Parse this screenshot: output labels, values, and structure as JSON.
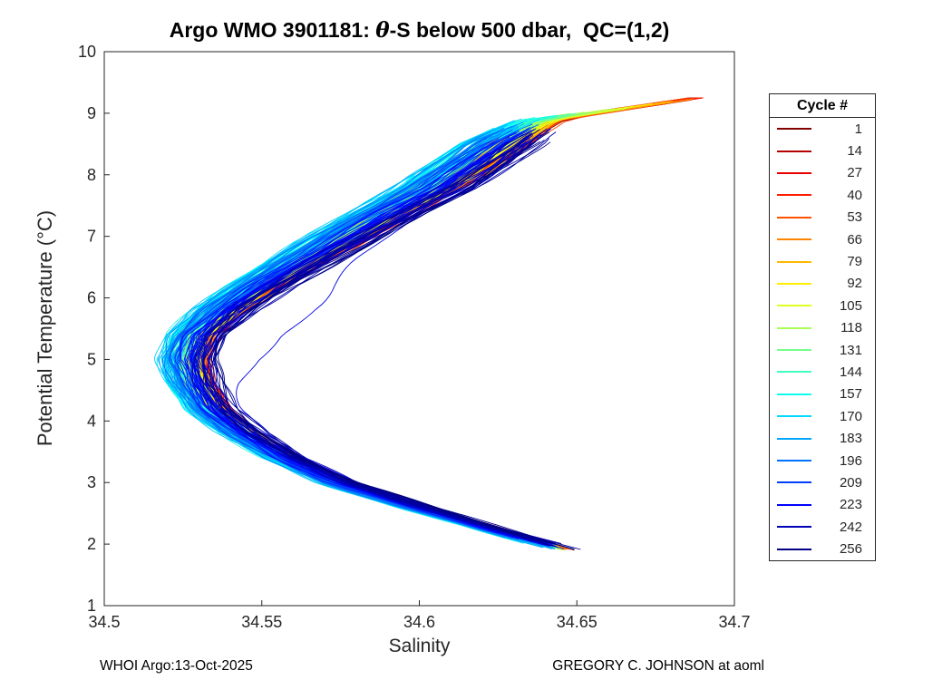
{
  "chart_data": {
    "type": "line",
    "title": "Argo WMO 3901181: θ-S below 500 dbar,  QC=(1,2)",
    "title_parts": {
      "prefix": "Argo WMO 3901181: ",
      "theta": "θ",
      "suffix": "-S below 500 dbar,  QC=(1,2)"
    },
    "xlabel": "Salinity",
    "ylabel": "Potential Temperature (°C)",
    "xlim": [
      34.5,
      34.7
    ],
    "ylim": [
      1,
      10
    ],
    "xticks": [
      34.5,
      34.55,
      34.6,
      34.65,
      34.7
    ],
    "xtick_labels": [
      "34.5",
      "34.55",
      "34.6",
      "34.65",
      "34.7"
    ],
    "yticks": [
      1,
      2,
      3,
      4,
      5,
      6,
      7,
      8,
      9,
      10
    ],
    "ytick_labels": [
      "1",
      "2",
      "3",
      "4",
      "5",
      "6",
      "7",
      "8",
      "9",
      "10"
    ],
    "grid": false,
    "axes_color": "#262626",
    "legend": {
      "title": "Cycle #",
      "position": "outside-right",
      "entries": [
        {
          "label": "1",
          "color": "#800000"
        },
        {
          "label": "14",
          "color": "#B40000"
        },
        {
          "label": "27",
          "color": "#E80000"
        },
        {
          "label": "40",
          "color": "#FF1C00"
        },
        {
          "label": "53",
          "color": "#FF5100"
        },
        {
          "label": "66",
          "color": "#FF8500"
        },
        {
          "label": "79",
          "color": "#FFB900"
        },
        {
          "label": "92",
          "color": "#FFED00"
        },
        {
          "label": "105",
          "color": "#DEFF21"
        },
        {
          "label": "118",
          "color": "#AAFF55"
        },
        {
          "label": "131",
          "color": "#76FF8A"
        },
        {
          "label": "144",
          "color": "#41FFBE"
        },
        {
          "label": "157",
          "color": "#0EFFF2"
        },
        {
          "label": "170",
          "color": "#00D9FF"
        },
        {
          "label": "183",
          "color": "#00A5FF"
        },
        {
          "label": "196",
          "color": "#0070FF"
        },
        {
          "label": "209",
          "color": "#003DFF"
        },
        {
          "label": "223",
          "color": "#0004FF"
        },
        {
          "label": "242",
          "color": "#0000B8"
        },
        {
          "label": "256",
          "color": "#000080"
        }
      ]
    },
    "colormap": {
      "name": "jet-reversed",
      "stops": [
        {
          "t": 0.0,
          "color": "#800000"
        },
        {
          "t": 0.125,
          "color": "#FF0000"
        },
        {
          "t": 0.375,
          "color": "#FFFF00"
        },
        {
          "t": 0.625,
          "color": "#00FFFF"
        },
        {
          "t": 0.875,
          "color": "#0000FF"
        },
        {
          "t": 1.0,
          "color": "#000080"
        }
      ]
    },
    "cycles": {
      "first": 1,
      "last": 256
    },
    "representative_curve": {
      "theta": [
        1.9,
        2.2,
        2.6,
        3.0,
        3.4,
        3.8,
        4.2,
        4.6,
        5.0,
        5.4,
        5.8,
        6.2,
        6.6,
        7.0,
        7.4,
        7.8,
        8.2,
        8.6,
        8.9,
        9.25
      ],
      "salinity": [
        34.648,
        34.627,
        34.6,
        34.576,
        34.559,
        34.546,
        34.536,
        34.531,
        34.529,
        34.532,
        34.541,
        34.553,
        34.566,
        34.58,
        34.594,
        34.609,
        34.621,
        34.632,
        34.642,
        34.688
      ]
    },
    "spread": {
      "salinity_halfwidth_mid": 0.012,
      "theta_top_range": [
        8.6,
        9.25
      ],
      "theta_bottom_range": [
        1.9,
        2.2
      ]
    }
  },
  "footer": {
    "left": "WHOI Argo:13-Oct-2025",
    "right": "GREGORY C. JOHNSON at aoml"
  }
}
